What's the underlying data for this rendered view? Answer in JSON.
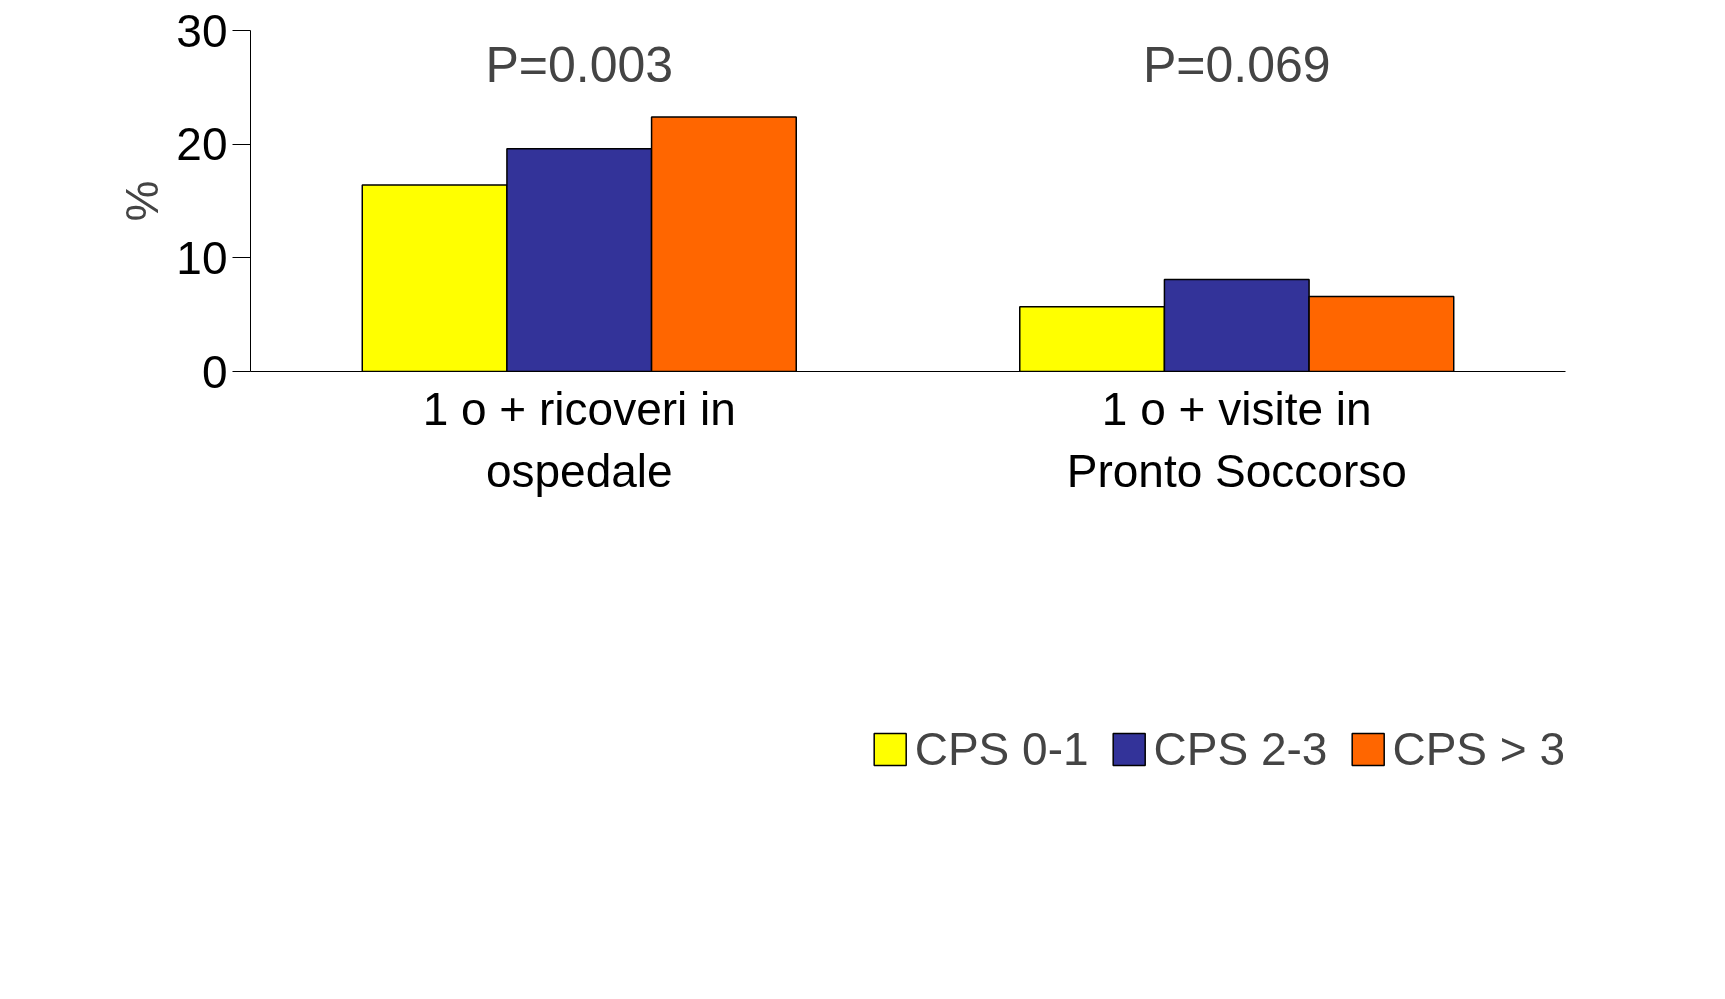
{
  "chart_data": {
    "type": "bar",
    "ylabel": "%",
    "categories": [
      "1 o + ricoveri in ospedale",
      "1 o + visite in Pronto Soccorso"
    ],
    "series": [
      {
        "name": "CPS 0-1",
        "color": "#ffff00",
        "values": [
          16.4,
          5.7
        ]
      },
      {
        "name": "CPS 2-3",
        "color": "#333399",
        "values": [
          19.6,
          8.1
        ]
      },
      {
        "name": "CPS > 3",
        "color": "#ff6600",
        "values": [
          22.4,
          6.6
        ]
      }
    ],
    "ylim": [
      0,
      30
    ],
    "yticks": [
      0,
      10,
      20,
      30
    ],
    "grid": false,
    "legend": "bottom",
    "annotations": [
      "P=0.003",
      "P=0.069"
    ]
  }
}
